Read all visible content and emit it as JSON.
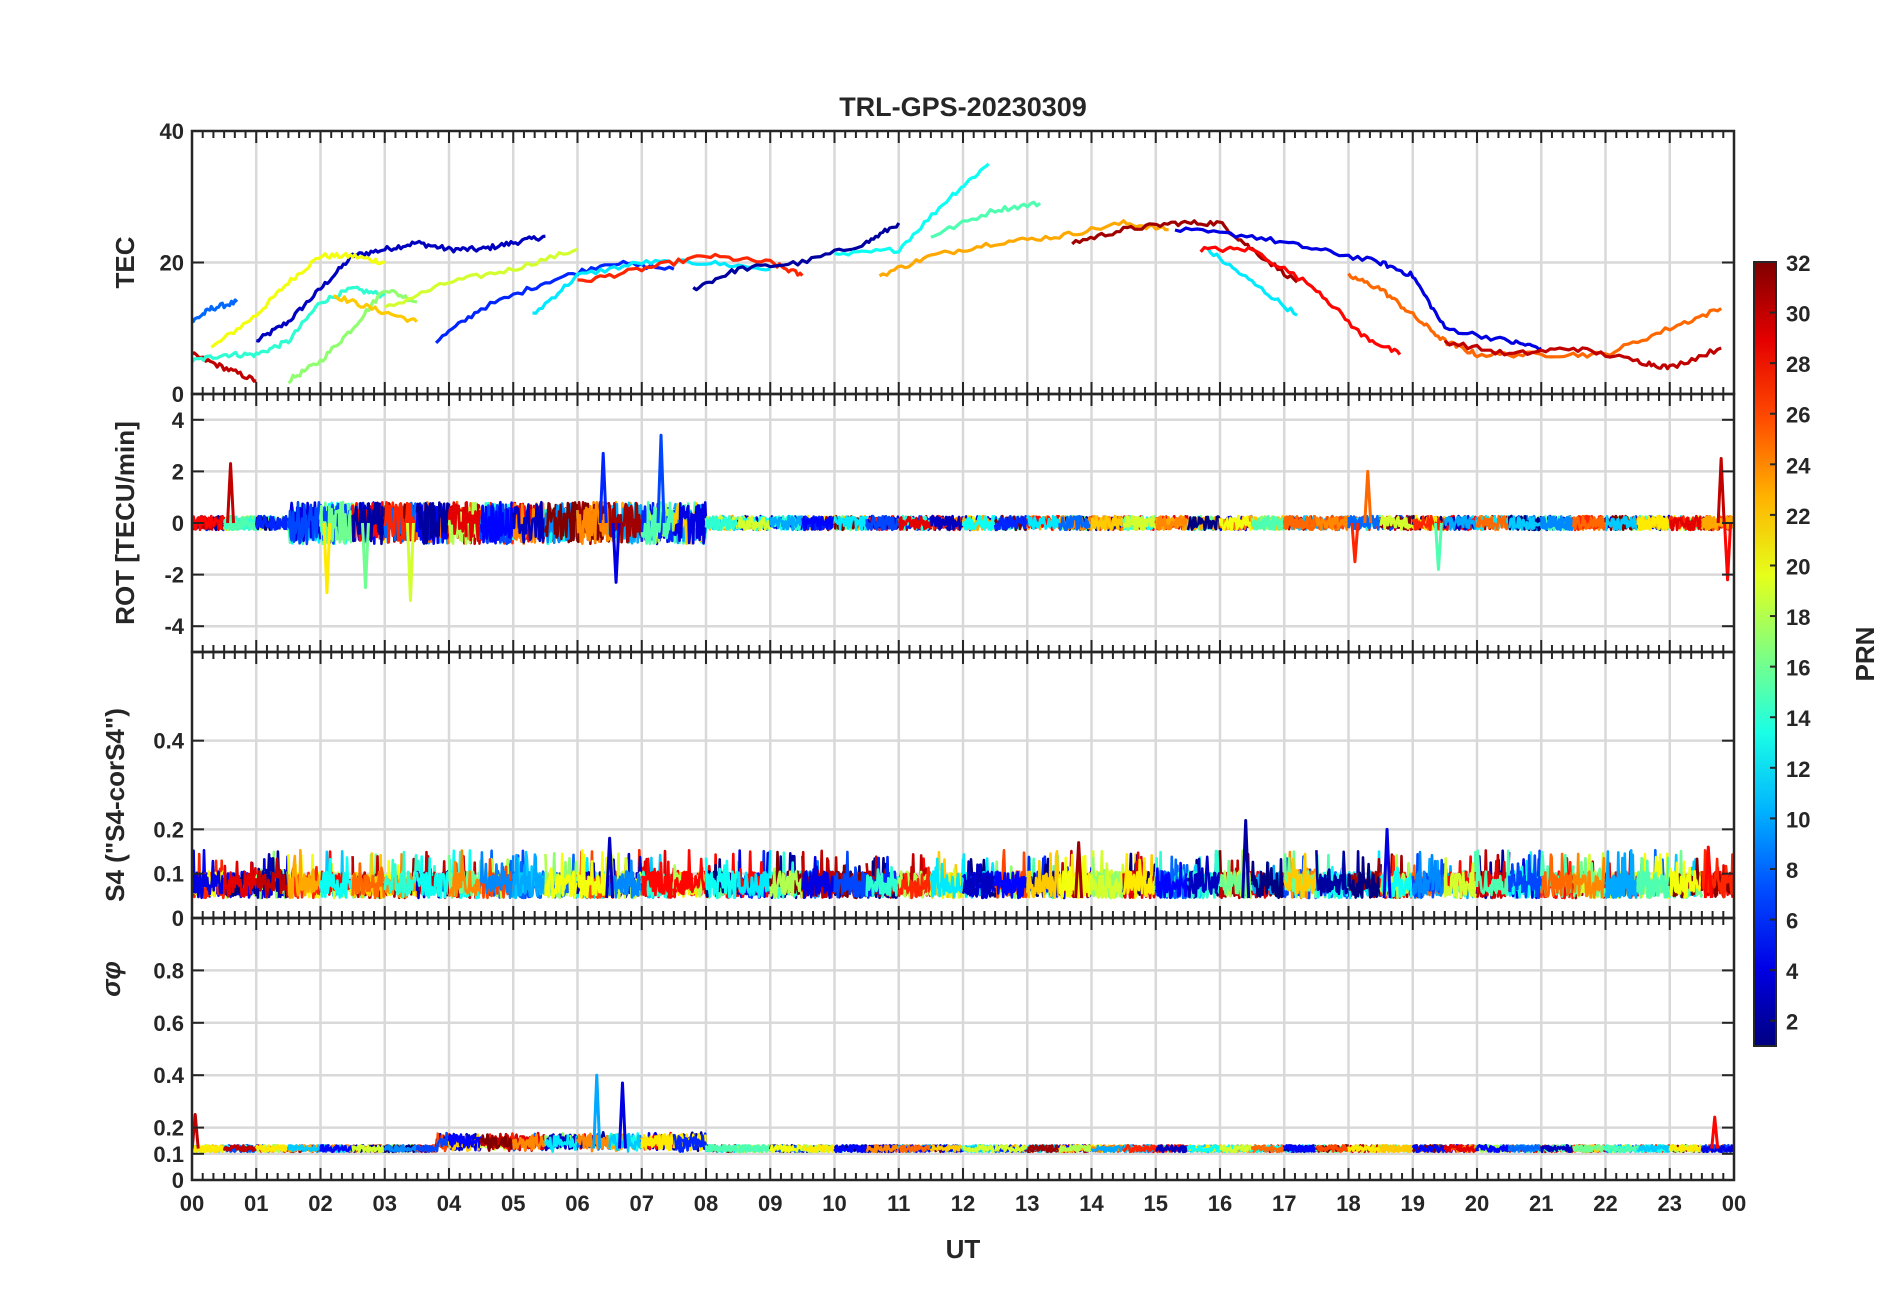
{
  "chart_data": {
    "type": "line",
    "title": "TRL-GPS-20230309",
    "xlabel": "UT",
    "x_ticks": [
      "00",
      "01",
      "02",
      "03",
      "04",
      "05",
      "06",
      "07",
      "08",
      "09",
      "10",
      "11",
      "12",
      "13",
      "14",
      "15",
      "16",
      "17",
      "18",
      "19",
      "20",
      "21",
      "22",
      "23",
      "00"
    ],
    "xlim": [
      0,
      24
    ],
    "grid": true,
    "panels": [
      {
        "id": "tec",
        "ylabel": "TEC",
        "ylim": [
          0,
          40
        ],
        "y_ticks": [
          {
            "value": 0,
            "label": "0"
          },
          {
            "value": 20,
            "label": "20"
          },
          {
            "value": 40,
            "label": "40"
          }
        ],
        "series": [
          {
            "prn": 3,
            "x": [
              1.0,
              1.5,
              2.0,
              2.5,
              3.0,
              3.5,
              4.0,
              4.5,
              5.0,
              5.5
            ],
            "values": [
              8,
              11,
              16,
              21,
              22,
              23,
              22,
              22,
              23,
              24
            ]
          },
          {
            "prn": 20,
            "x": [
              0.3,
              1.0,
              1.5,
              2.0,
              2.5,
              3.0
            ],
            "values": [
              7,
              12,
              17,
              21,
              21,
              20
            ]
          },
          {
            "prn": 8,
            "x": [
              0.0,
              0.3,
              0.7
            ],
            "values": [
              11,
              13,
              14
            ]
          },
          {
            "prn": 30,
            "x": [
              0.0,
              0.5,
              1.0
            ],
            "values": [
              6,
              4,
              2
            ]
          },
          {
            "prn": 14,
            "x": [
              0.0,
              0.5,
              1.0,
              1.5,
              2.0,
              2.5,
              3.0
            ],
            "values": [
              5,
              6,
              6,
              8,
              14,
              16,
              15
            ]
          },
          {
            "prn": 17,
            "x": [
              1.5,
              2.0,
              2.5,
              3.0,
              3.5
            ],
            "values": [
              2,
              5,
              10,
              16,
              14
            ]
          },
          {
            "prn": 22,
            "x": [
              2.2,
              2.8,
              3.5
            ],
            "values": [
              15,
              13,
              11
            ]
          },
          {
            "prn": 19,
            "x": [
              3.0,
              4.0,
              5.0,
              6.0
            ],
            "values": [
              13,
              17,
              19,
              22
            ]
          },
          {
            "prn": 6,
            "x": [
              3.8,
              4.5,
              5.5,
              6.5,
              7.5
            ],
            "values": [
              8,
              13,
              17,
              20,
              19
            ]
          },
          {
            "prn": 12,
            "x": [
              5.3,
              6.0,
              7.0,
              8.0,
              9.0
            ],
            "values": [
              12,
              18,
              20,
              20,
              19
            ]
          },
          {
            "prn": 27,
            "x": [
              6.0,
              7.0,
              8.0,
              9.0,
              9.5
            ],
            "values": [
              17,
              19,
              21,
              20,
              18
            ]
          },
          {
            "prn": 2,
            "x": [
              7.8,
              8.5,
              9.5,
              10.5,
              11.0
            ],
            "values": [
              16,
              19,
              20,
              23,
              26
            ]
          },
          {
            "prn": 13,
            "x": [
              10.0,
              11.0,
              11.8,
              12.4
            ],
            "values": [
              21,
              22,
              30,
              35
            ]
          },
          {
            "prn": 15,
            "x": [
              11.5,
              12.5,
              13.2
            ],
            "values": [
              24,
              28,
              29
            ]
          },
          {
            "prn": 23,
            "x": [
              10.7,
              11.5,
              12.5,
              13.5,
              14.5,
              15.2
            ],
            "values": [
              18,
              21,
              23,
              24,
              26,
              25
            ]
          },
          {
            "prn": 31,
            "x": [
              13.7,
              14.5,
              15.3,
              16.0,
              16.5,
              17.2
            ],
            "values": [
              23,
              25,
              26,
              26,
              22,
              17
            ]
          },
          {
            "prn": 4,
            "x": [
              15.3,
              16.5,
              17.5,
              18.5,
              19.0,
              19.5,
              20.5,
              21.0
            ],
            "values": [
              25,
              24,
              22,
              20,
              18,
              10,
              8,
              7
            ]
          },
          {
            "prn": 12,
            "x": [
              15.8,
              16.5,
              17.2
            ],
            "values": [
              22,
              17,
              12
            ]
          },
          {
            "prn": 28,
            "x": [
              15.7,
              16.5,
              17.5,
              18.2,
              18.8
            ],
            "values": [
              22,
              22,
              16,
              9,
              6
            ]
          },
          {
            "prn": 25,
            "x": [
              18.0,
              18.5,
              19.0,
              19.5,
              20.0,
              21.0,
              22.0,
              23.0,
              23.8
            ],
            "values": [
              18,
              16,
              12,
              8,
              6,
              6,
              6,
              10,
              13
            ]
          },
          {
            "prn": 30,
            "x": [
              19.5,
              20.5,
              21.5,
              22.5,
              23.0,
              23.8
            ],
            "values": [
              8,
              6,
              7,
              5,
              4,
              7
            ]
          }
        ]
      },
      {
        "id": "rot",
        "ylabel": "ROT [TECU/min]",
        "ylim": [
          -5,
          5
        ],
        "y_ticks": [
          {
            "value": -4,
            "label": "-4"
          },
          {
            "value": -2,
            "label": "-2"
          },
          {
            "value": 0,
            "label": "0"
          },
          {
            "value": 2,
            "label": "2"
          },
          {
            "value": 4,
            "label": "4"
          }
        ],
        "spikes": [
          {
            "x": 0.6,
            "value": 2.3,
            "prn": 30
          },
          {
            "x": 2.1,
            "value": -2.7,
            "prn": 21
          },
          {
            "x": 2.7,
            "value": -2.5,
            "prn": 16
          },
          {
            "x": 3.4,
            "value": -3.0,
            "prn": 19
          },
          {
            "x": 6.4,
            "value": 2.7,
            "prn": 6
          },
          {
            "x": 7.3,
            "value": 3.4,
            "prn": 7
          },
          {
            "x": 6.6,
            "value": -2.3,
            "prn": 4
          },
          {
            "x": 18.3,
            "value": 2.0,
            "prn": 25
          },
          {
            "x": 18.1,
            "value": -1.5,
            "prn": 27
          },
          {
            "x": 19.4,
            "value": -1.8,
            "prn": 15
          },
          {
            "x": 23.8,
            "value": 2.5,
            "prn": 30
          },
          {
            "x": 23.9,
            "value": -2.2,
            "prn": 28
          }
        ]
      },
      {
        "id": "s4",
        "ylabel": "S4 (\"S4-corS4\")",
        "ylim": [
          0,
          0.6
        ],
        "y_ticks": [
          {
            "value": 0,
            "label": "0"
          },
          {
            "value": 0.1,
            "label": "0.1"
          },
          {
            "value": 0.2,
            "label": "0.2"
          },
          {
            "value": 0.4,
            "label": "0.4"
          }
        ],
        "spikes": [
          {
            "x": 6.5,
            "value": 0.18,
            "prn": 3
          },
          {
            "x": 16.4,
            "value": 0.22,
            "prn": 2
          },
          {
            "x": 18.6,
            "value": 0.2,
            "prn": 4
          },
          {
            "x": 13.8,
            "value": 0.17,
            "prn": 31
          },
          {
            "x": 23.6,
            "value": 0.16,
            "prn": 28
          }
        ]
      },
      {
        "id": "sigma",
        "ylabel": "σφ",
        "ylim": [
          0,
          1
        ],
        "y_ticks": [
          {
            "value": 0,
            "label": "0"
          },
          {
            "value": 0.1,
            "label": "0.1"
          },
          {
            "value": 0.2,
            "label": "0.2"
          },
          {
            "value": 0.4,
            "label": "0.4"
          },
          {
            "value": 0.6,
            "label": "0.6"
          },
          {
            "value": 0.8,
            "label": "0.8"
          }
        ],
        "spikes": [
          {
            "x": 0.05,
            "value": 0.25,
            "prn": 30
          },
          {
            "x": 6.3,
            "value": 0.4,
            "prn": 10
          },
          {
            "x": 6.7,
            "value": 0.37,
            "prn": 4
          },
          {
            "x": 23.7,
            "value": 0.24,
            "prn": 28
          }
        ]
      }
    ],
    "colorbar": {
      "label": "PRN",
      "range": [
        1,
        32
      ],
      "ticks": [
        "2",
        "4",
        "6",
        "8",
        "10",
        "12",
        "14",
        "16",
        "18",
        "20",
        "22",
        "24",
        "26",
        "28",
        "30",
        "32"
      ]
    }
  }
}
